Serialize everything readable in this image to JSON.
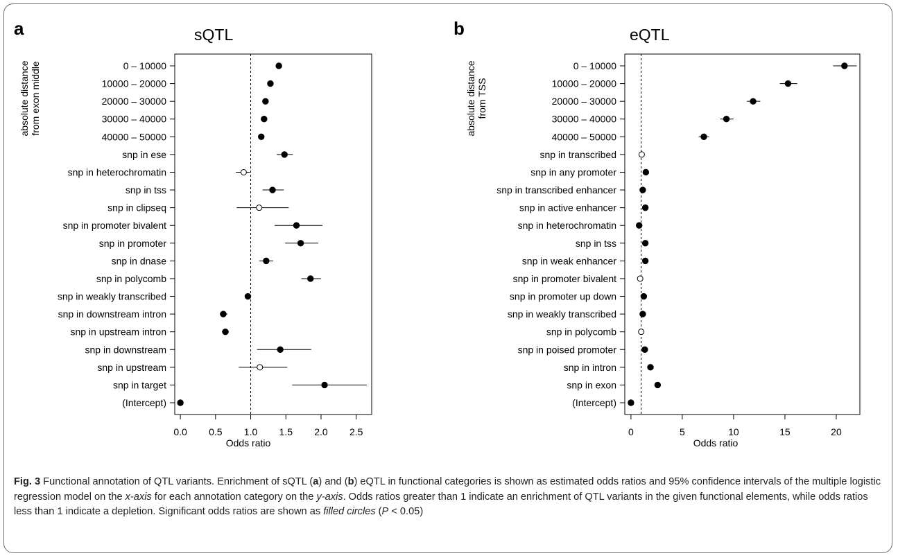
{
  "figure": {
    "caption": {
      "label": "Fig. 3",
      "title": "Functional annotation of QTL variants.",
      "p1": "Enrichment of sQTL (",
      "a": "a",
      "p2": ") and (",
      "b": "b",
      "p3": ") eQTL in functional categories is shown as estimated odds ratios and 95% confidence intervals of the multiple logistic regression model on the ",
      "xaxis": "x-axis",
      "p4": " for each annotation category on the ",
      "yaxis": "y-axis",
      "p5": ". Odds ratios greater than 1 indicate an enrichment of QTL variants in the given functional elements, while odds ratios less than 1 indicate a depletion. Significant odds ratios are shown as ",
      "filled": "filled circles",
      "p6": " (",
      "pval_italic": "P",
      "p7": " < 0.05)"
    }
  },
  "chart_data": [
    {
      "type": "scatter",
      "panel_letter": "a",
      "title": "sQTL",
      "ylabel_lines": [
        "absolute distance",
        "from exon middle"
      ],
      "xlabel": "Odds ratio",
      "xlim": [
        -0.08,
        2.72
      ],
      "xticks": [
        0.0,
        0.5,
        1.0,
        1.5,
        2.0,
        2.5
      ],
      "xtick_labels": [
        "0.0",
        "0.5",
        "1.0",
        "1.5",
        "2.0",
        "2.5"
      ],
      "reference_line": 1.0,
      "categories": [
        "0 – 10000",
        "10000 – 20000",
        "20000 – 30000",
        "30000 – 40000",
        "40000 – 50000",
        "snp  in  ese",
        "snp  in  heterochromatin",
        "snp  in  tss",
        "snp  in  clipseq",
        "snp  in  promoter bivalent",
        "snp  in  promoter",
        "snp  in  dnase",
        "snp  in  polycomb",
        "snp  in  weakly transcribed",
        "snp  in  downstream intron",
        "snp  in  upstream intron",
        "snp  in  downstream",
        "snp  in  upstream",
        "snp  in  target",
        "(Intercept)"
      ],
      "estimates": [
        1.4,
        1.28,
        1.21,
        1.19,
        1.15,
        1.48,
        0.9,
        1.31,
        1.12,
        1.65,
        1.71,
        1.22,
        1.85,
        0.96,
        0.61,
        0.64,
        1.42,
        1.13,
        2.05,
        0.0
      ],
      "ci_low": [
        1.36,
        1.25,
        1.18,
        1.16,
        1.12,
        1.37,
        0.79,
        1.17,
        0.8,
        1.34,
        1.49,
        1.12,
        1.72,
        0.95,
        0.56,
        0.59,
        1.09,
        0.83,
        1.59,
        0.0
      ],
      "ci_high": [
        1.44,
        1.31,
        1.24,
        1.22,
        1.18,
        1.6,
        0.99,
        1.47,
        1.54,
        2.02,
        1.96,
        1.32,
        2.0,
        0.97,
        0.67,
        0.69,
        1.86,
        1.52,
        2.65,
        0.0
      ],
      "significant": [
        true,
        true,
        true,
        true,
        true,
        true,
        false,
        true,
        false,
        true,
        true,
        true,
        true,
        true,
        true,
        true,
        true,
        false,
        true,
        true
      ]
    },
    {
      "type": "scatter",
      "panel_letter": "b",
      "title": "eQTL",
      "ylabel_lines": [
        "absolute distance",
        "from TSS"
      ],
      "xlabel": "Odds ratio",
      "xlim": [
        -0.6,
        22.3
      ],
      "xticks": [
        0,
        5,
        10,
        15,
        20
      ],
      "xtick_labels": [
        "0",
        "5",
        "10",
        "15",
        "20"
      ],
      "reference_line": 1.0,
      "categories": [
        "0 – 10000",
        "10000 – 20000",
        "20000 – 30000",
        "30000 – 40000",
        "40000 – 50000",
        "snp  in  transcribed",
        "snp  in  any promoter",
        "snp  in  transcribed enhancer",
        "snp  in  active enhancer",
        "snp  in  heterochromatin",
        "snp  in  tss",
        "snp  in  weak enhancer",
        "snp  in  promoter bivalent",
        "snp  in  promoter up down",
        "snp  in  weakly transcribed",
        "snp  in  polycomb",
        "snp  in  poised promoter",
        "snp  in  intron",
        "snp  in  exon",
        "(Intercept)"
      ],
      "estimates": [
        20.8,
        15.3,
        11.9,
        9.3,
        7.1,
        1.05,
        1.45,
        1.15,
        1.4,
        0.8,
        1.4,
        1.4,
        0.9,
        1.25,
        1.15,
        1.0,
        1.35,
        1.9,
        2.6,
        0.0
      ],
      "ci_low": [
        19.7,
        14.5,
        11.3,
        8.7,
        6.6,
        0.95,
        1.25,
        1.05,
        1.3,
        0.7,
        1.3,
        1.3,
        0.7,
        1.15,
        1.05,
        0.85,
        1.25,
        1.75,
        2.45,
        0.0
      ],
      "ci_high": [
        22.0,
        16.2,
        12.6,
        10.0,
        7.6,
        1.15,
        1.65,
        1.25,
        1.5,
        0.9,
        1.5,
        1.5,
        1.1,
        1.35,
        1.25,
        1.15,
        1.45,
        2.05,
        2.75,
        0.0
      ],
      "significant": [
        true,
        true,
        true,
        true,
        true,
        false,
        true,
        true,
        true,
        true,
        true,
        true,
        false,
        true,
        true,
        false,
        true,
        true,
        true,
        true
      ]
    }
  ]
}
